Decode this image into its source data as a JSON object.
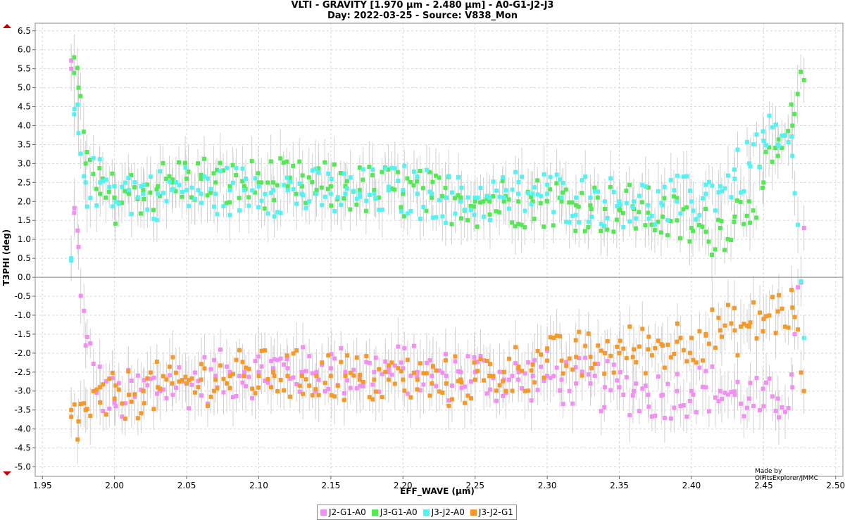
{
  "chart_data": {
    "type": "scatter",
    "title": "VLTI - GRAVITY [1.970 µm - 2.480 µm] - A0-G1-J2-J3",
    "subtitle": "Day: 2022-03-25 - Source: V838_Mon",
    "xlabel": "EFF_WAVE (µm)",
    "ylabel": "T3PHI (deg)",
    "xlim": [
      1.945,
      2.505
    ],
    "ylim": [
      -5.25,
      6.7
    ],
    "x_ticks": [
      "1.95",
      "2.00",
      "2.05",
      "2.10",
      "2.15",
      "2.20",
      "2.25",
      "2.30",
      "2.35",
      "2.40",
      "2.45",
      "2.50"
    ],
    "y_ticks": [
      "6.5",
      "6.0",
      "5.5",
      "5.0",
      "4.5",
      "4.0",
      "3.5",
      "3.0",
      "2.5",
      "2.0",
      "1.5",
      "1.0",
      "0.5",
      "0.0",
      "-0.5",
      "-1.0",
      "-1.5",
      "-2.0",
      "-2.5",
      "-3.0",
      "-3.5",
      "-4.0",
      "-4.5",
      "-5.0"
    ],
    "grid": true,
    "error_bars": true,
    "legend_position": "bottom-center",
    "series": [
      {
        "name": "J2-G1-A0",
        "color": "#f28ff2",
        "x": [
          1.97,
          1.972,
          1.975,
          1.98,
          1.99,
          2.0,
          2.01,
          2.02,
          2.03,
          2.04,
          2.05,
          2.06,
          2.07,
          2.08,
          2.09,
          2.1,
          2.11,
          2.12,
          2.13,
          2.14,
          2.15,
          2.16,
          2.17,
          2.18,
          2.19,
          2.2,
          2.21,
          2.22,
          2.23,
          2.24,
          2.25,
          2.26,
          2.27,
          2.28,
          2.29,
          2.3,
          2.31,
          2.32,
          2.33,
          2.34,
          2.35,
          2.36,
          2.37,
          2.38,
          2.39,
          2.4,
          2.41,
          2.42,
          2.43,
          2.44,
          2.45,
          2.46,
          2.47,
          2.478
        ],
        "y": [
          5.5,
          1.7,
          0.8,
          -1.8,
          -2.9,
          -3.3,
          -3.1,
          -3.0,
          -2.9,
          -2.8,
          -2.8,
          -2.7,
          -2.6,
          -2.6,
          -2.5,
          -2.5,
          -2.4,
          -2.4,
          -2.5,
          -2.5,
          -2.4,
          -2.5,
          -2.6,
          -2.5,
          -2.5,
          -2.4,
          -2.5,
          -2.6,
          -2.6,
          -2.5,
          -2.5,
          -2.6,
          -2.7,
          -2.7,
          -2.6,
          -2.6,
          -2.7,
          -2.8,
          -2.8,
          -2.9,
          -2.9,
          -3.0,
          -3.1,
          -3.1,
          -3.0,
          -3.0,
          -2.9,
          -3.0,
          -3.1,
          -3.2,
          -3.4,
          -3.2,
          -2.9,
          1.3
        ],
        "error_deg_typical": 0.6
      },
      {
        "name": "J3-G1-A0",
        "color": "#55e855",
        "x": [
          1.972,
          1.975,
          1.98,
          1.99,
          2.0,
          2.01,
          2.02,
          2.03,
          2.04,
          2.05,
          2.06,
          2.07,
          2.08,
          2.09,
          2.1,
          2.11,
          2.12,
          2.13,
          2.14,
          2.15,
          2.16,
          2.17,
          2.18,
          2.19,
          2.2,
          2.21,
          2.22,
          2.23,
          2.24,
          2.25,
          2.26,
          2.27,
          2.28,
          2.29,
          2.3,
          2.31,
          2.32,
          2.33,
          2.34,
          2.35,
          2.36,
          2.37,
          2.38,
          2.39,
          2.4,
          2.41,
          2.42,
          2.43,
          2.44,
          2.45,
          2.46,
          2.47,
          2.478
        ],
        "y": [
          5.8,
          5.0,
          3.0,
          2.2,
          2.1,
          2.2,
          2.3,
          2.4,
          2.5,
          2.6,
          2.6,
          2.5,
          2.4,
          2.4,
          2.5,
          2.5,
          2.4,
          2.4,
          2.3,
          2.4,
          2.4,
          2.3,
          2.3,
          2.3,
          2.2,
          2.2,
          2.1,
          2.1,
          2.1,
          2.0,
          2.0,
          2.0,
          2.0,
          2.0,
          2.0,
          2.0,
          1.9,
          1.9,
          1.8,
          1.8,
          1.8,
          1.7,
          1.6,
          1.5,
          1.3,
          1.2,
          1.3,
          1.6,
          2.0,
          2.5,
          3.2,
          4.0,
          5.2
        ],
        "error_deg_typical": 0.6
      },
      {
        "name": "J3-J2-A0",
        "color": "#55f2f2",
        "x": [
          1.97,
          1.972,
          1.975,
          1.98,
          1.99,
          2.0,
          2.01,
          2.02,
          2.03,
          2.04,
          2.05,
          2.06,
          2.07,
          2.08,
          2.09,
          2.1,
          2.11,
          2.12,
          2.13,
          2.14,
          2.15,
          2.16,
          2.17,
          2.18,
          2.19,
          2.2,
          2.21,
          2.22,
          2.23,
          2.24,
          2.25,
          2.26,
          2.27,
          2.28,
          2.29,
          2.3,
          2.31,
          2.32,
          2.33,
          2.34,
          2.35,
          2.36,
          2.37,
          2.38,
          2.39,
          2.4,
          2.41,
          2.42,
          2.43,
          2.44,
          2.45,
          2.46,
          2.47,
          2.478
        ],
        "y": [
          0.5,
          4.3,
          3.8,
          2.5,
          2.5,
          2.4,
          2.3,
          2.2,
          2.2,
          2.3,
          2.3,
          2.2,
          2.2,
          2.3,
          2.3,
          2.4,
          2.3,
          2.3,
          2.2,
          2.2,
          2.2,
          2.2,
          2.2,
          2.2,
          2.3,
          2.3,
          2.2,
          2.2,
          2.1,
          2.0,
          2.1,
          2.1,
          2.1,
          2.2,
          2.2,
          2.2,
          2.1,
          2.1,
          2.1,
          2.0,
          2.0,
          2.0,
          1.9,
          1.9,
          2.0,
          2.0,
          2.2,
          2.4,
          2.6,
          3.0,
          3.6,
          3.5,
          3.2,
          -1.6
        ],
        "error_deg_typical": 0.6
      },
      {
        "name": "J3-J2-G1",
        "color": "#f59a2a",
        "x": [
          1.97,
          1.975,
          1.98,
          1.99,
          2.0,
          2.01,
          2.02,
          2.03,
          2.04,
          2.05,
          2.06,
          2.07,
          2.08,
          2.09,
          2.1,
          2.11,
          2.12,
          2.13,
          2.14,
          2.15,
          2.16,
          2.17,
          2.18,
          2.19,
          2.2,
          2.21,
          2.22,
          2.23,
          2.24,
          2.25,
          2.26,
          2.27,
          2.28,
          2.29,
          2.3,
          2.31,
          2.32,
          2.33,
          2.34,
          2.35,
          2.36,
          2.37,
          2.38,
          2.39,
          2.4,
          2.41,
          2.42,
          2.43,
          2.44,
          2.45,
          2.46,
          2.47,
          2.478
        ],
        "y": [
          -3.5,
          -3.8,
          -3.5,
          -3.3,
          -3.2,
          -3.1,
          -3.0,
          -2.9,
          -2.8,
          -2.8,
          -2.7,
          -2.7,
          -2.6,
          -2.6,
          -2.6,
          -2.5,
          -2.6,
          -2.6,
          -2.6,
          -2.6,
          -2.6,
          -2.7,
          -2.7,
          -2.7,
          -2.7,
          -2.7,
          -2.8,
          -2.8,
          -2.7,
          -2.7,
          -2.6,
          -2.5,
          -2.4,
          -2.3,
          -2.2,
          -2.2,
          -2.1,
          -2.1,
          -2.0,
          -2.0,
          -1.9,
          -1.9,
          -1.8,
          -1.7,
          -1.6,
          -1.5,
          -1.4,
          -1.4,
          -1.3,
          -1.1,
          -0.9,
          -0.8,
          -3.0
        ],
        "error_deg_typical": 0.6
      }
    ]
  },
  "credit": "Made by OIFitsExplorer/JMMC"
}
